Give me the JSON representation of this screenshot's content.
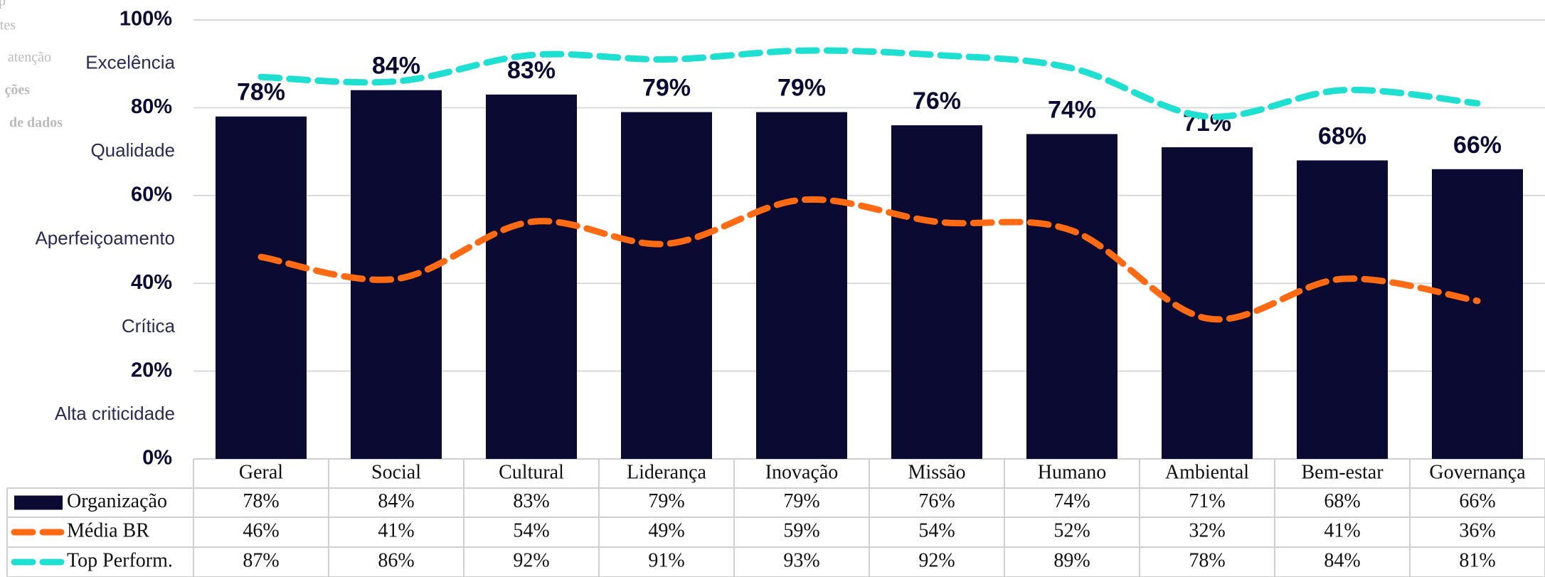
{
  "sidebar": [
    "p",
    "tes",
    "atenção",
    "ções",
    "de dados"
  ],
  "chart_data": {
    "type": "bar",
    "categories": [
      "Geral",
      "Social",
      "Cultural",
      "Liderança",
      "Inovação",
      "Missão",
      "Humano",
      "Ambiental",
      "Bem-estar",
      "Governança"
    ],
    "series": [
      {
        "name": "Organização",
        "type": "bar",
        "color": "#0a0a33",
        "values": [
          78,
          84,
          83,
          79,
          79,
          76,
          74,
          71,
          68,
          66
        ],
        "value_labels": [
          "78%",
          "84%",
          "83%",
          "79%",
          "79%",
          "76%",
          "74%",
          "71%",
          "68%",
          "66%"
        ]
      },
      {
        "name": "Média BR",
        "type": "line",
        "color": "#ff6a13",
        "values": [
          46,
          41,
          54,
          49,
          59,
          54,
          52,
          32,
          41,
          36
        ],
        "value_labels": [
          "46%",
          "41%",
          "54%",
          "49%",
          "59%",
          "54%",
          "52%",
          "32%",
          "41%",
          "36%"
        ]
      },
      {
        "name": "Top Perform.",
        "type": "line",
        "color": "#1ee0d0",
        "values": [
          87,
          86,
          92,
          91,
          93,
          92,
          89,
          78,
          84,
          81
        ],
        "value_labels": [
          "87%",
          "86%",
          "92%",
          "91%",
          "93%",
          "92%",
          "89%",
          "78%",
          "84%",
          "81%"
        ]
      }
    ],
    "ylim": [
      0,
      100
    ],
    "yticks": [
      {
        "value": 0,
        "label": "0%"
      },
      {
        "value": 20,
        "label": "20%"
      },
      {
        "value": 40,
        "label": "40%"
      },
      {
        "value": 60,
        "label": "60%"
      },
      {
        "value": 80,
        "label": "80%"
      },
      {
        "value": 100,
        "label": "100%"
      }
    ],
    "band_labels": [
      "Alta criticidade",
      "Crítica",
      "Aperfeiçoamento",
      "Qualidade",
      "Excelência"
    ],
    "grid": true,
    "data_table": true
  }
}
